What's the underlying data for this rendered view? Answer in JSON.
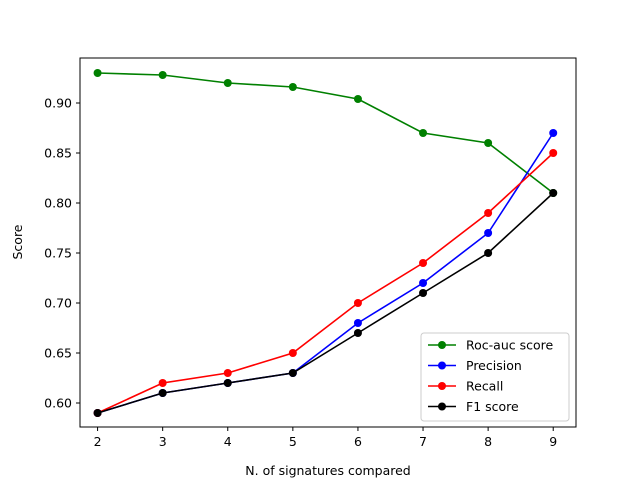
{
  "chart_data": {
    "type": "line",
    "title": "",
    "xlabel": "N. of signatures compared",
    "ylabel": "Score",
    "x": [
      2,
      3,
      4,
      5,
      6,
      7,
      8,
      9
    ],
    "xlim": [
      1.73,
      9.35
    ],
    "ylim": [
      0.576,
      0.945
    ],
    "xticks": [
      2,
      3,
      4,
      5,
      6,
      7,
      8,
      9
    ],
    "yticks": [
      0.6,
      0.65,
      0.7,
      0.75,
      0.8,
      0.85,
      0.9
    ],
    "ytick_labels": [
      "0.60",
      "0.65",
      "0.70",
      "0.75",
      "0.80",
      "0.85",
      "0.90"
    ],
    "grid": false,
    "legend_position": "bottom-right",
    "series": [
      {
        "name": "Roc-auc score",
        "color": "#008000",
        "values": [
          0.93,
          0.928,
          0.92,
          0.916,
          0.904,
          0.87,
          0.86,
          0.81
        ]
      },
      {
        "name": "Precision",
        "color": "#0000ff",
        "values": [
          0.59,
          0.61,
          0.62,
          0.63,
          0.68,
          0.72,
          0.77,
          0.87
        ]
      },
      {
        "name": "Recall",
        "color": "#ff0000",
        "values": [
          0.59,
          0.62,
          0.63,
          0.65,
          0.7,
          0.74,
          0.79,
          0.85
        ]
      },
      {
        "name": "F1 score",
        "color": "#000000",
        "values": [
          0.59,
          0.61,
          0.62,
          0.63,
          0.67,
          0.71,
          0.75,
          0.81
        ]
      }
    ]
  }
}
